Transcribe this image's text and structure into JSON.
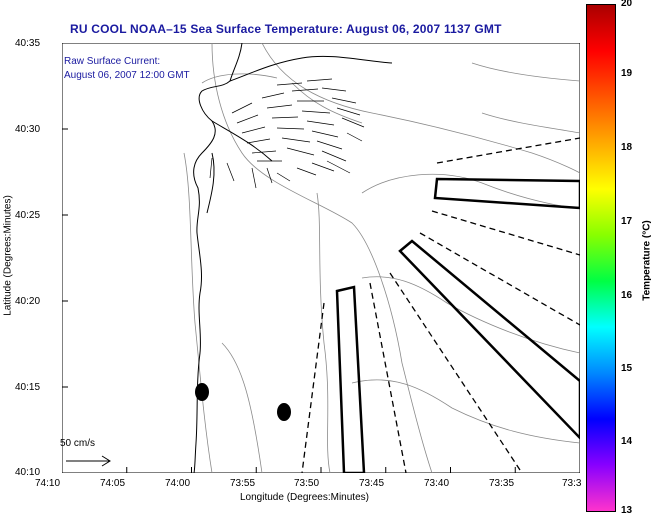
{
  "title": "RU COOL  NOAA–15  Sea Surface Temperature:  August 06, 2007 1137 GMT",
  "current_legend": {
    "line1": "Raw Surface Current:",
    "line2": "August 06, 2007 12:00 GMT"
  },
  "scale_label": "50 cm/s",
  "x_axis": {
    "label": "Longitude (Degrees:Minutes)",
    "ticks": [
      "74:10",
      "74:05",
      "74:00",
      "73:55",
      "73:50",
      "73:45",
      "73:40",
      "73:35",
      "73:3"
    ]
  },
  "y_axis": {
    "label": "Latitude (Degrees:Minutes)",
    "ticks": [
      "40:35",
      "40:30",
      "40:25",
      "40:20",
      "40:15",
      "40:10"
    ]
  },
  "colorbar": {
    "label": "Temperature (°C)",
    "min": 13,
    "max": 20,
    "ticks": [
      "20",
      "19",
      "18",
      "17",
      "16",
      "15",
      "14",
      "13"
    ],
    "colors": [
      "#ff33cc",
      "#8800ff",
      "#0000ff",
      "#0088ff",
      "#00ffff",
      "#00ff44",
      "#88ff00",
      "#ffff00",
      "#ffaa00",
      "#ff5500",
      "#ff0000",
      "#aa0000"
    ]
  },
  "colors": {
    "title": "#1a1aa0",
    "contour": "#888888",
    "coast": "#000000"
  }
}
